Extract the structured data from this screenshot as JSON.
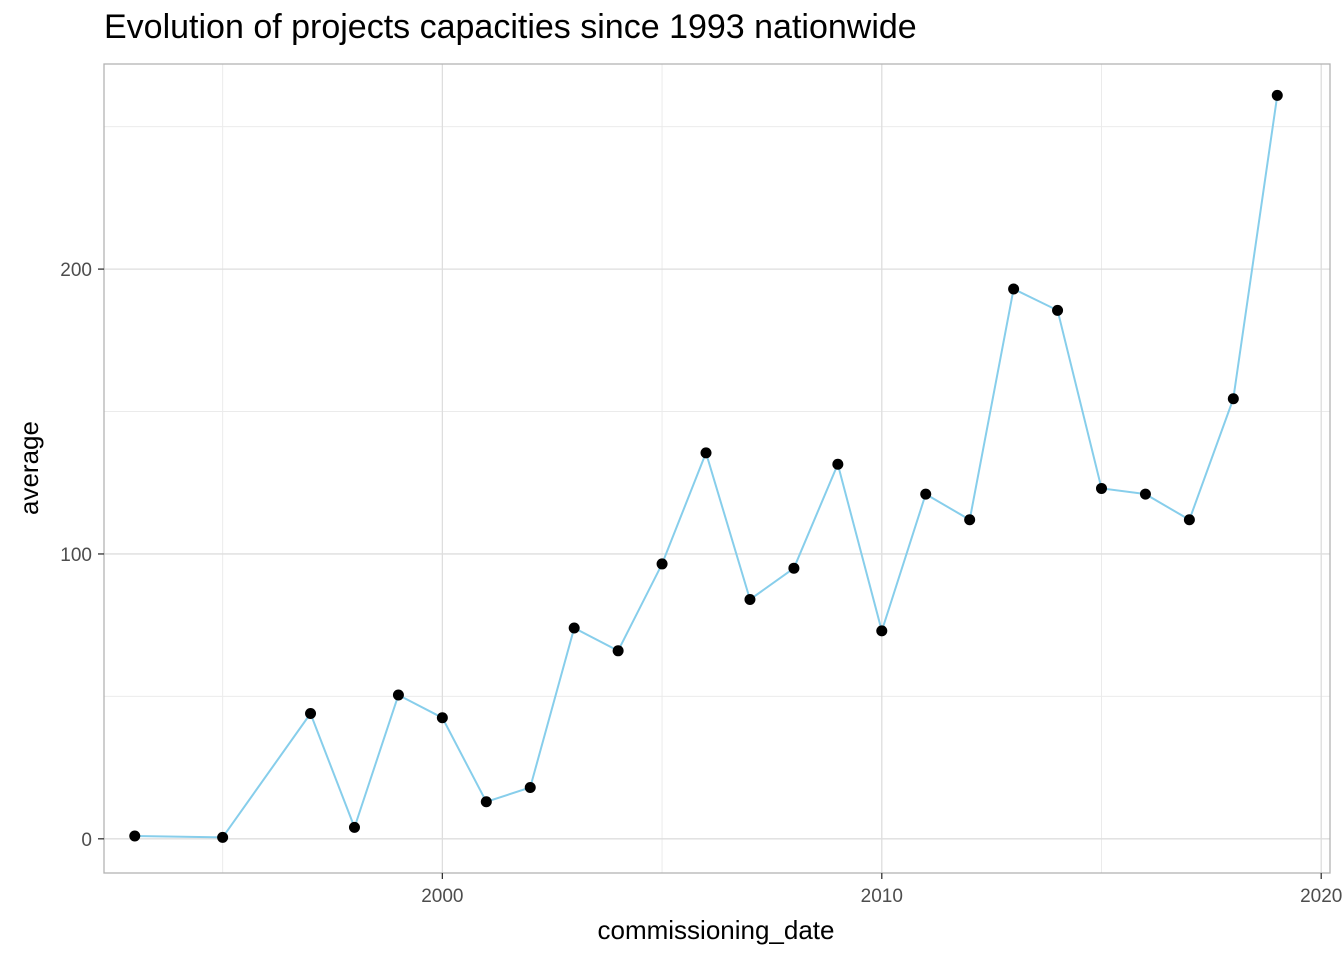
{
  "chart_data": {
    "type": "line",
    "title": "Evolution of projects capacities since 1993 nationwide",
    "xlabel": "commissioning_date",
    "ylabel": "average",
    "xlim": [
      1992.3,
      2020.2
    ],
    "ylim": [
      -12,
      272
    ],
    "xticks": [
      2000,
      2010,
      2020
    ],
    "yticks": [
      0,
      100,
      200
    ],
    "x_minor": [
      1995,
      2005,
      2015
    ],
    "y_minor": [
      50,
      150,
      250
    ],
    "grid": true,
    "line_color": "#87CEEB",
    "point_color": "#000000",
    "series": [
      {
        "x": [
          1993,
          1995,
          1997,
          1998,
          1999,
          2000,
          2001,
          2002,
          2003,
          2004,
          2005,
          2006,
          2007,
          2008,
          2009,
          2010,
          2011,
          2012,
          2013,
          2014,
          2015,
          2016,
          2017,
          2018,
          2019
        ],
        "values": [
          1,
          0.5,
          44,
          4,
          50.5,
          42.5,
          13,
          18,
          74,
          66,
          96.5,
          135.5,
          84,
          95,
          131.5,
          73,
          121,
          112,
          193,
          185.5,
          123,
          121,
          112,
          154.5,
          261
        ]
      }
    ]
  }
}
